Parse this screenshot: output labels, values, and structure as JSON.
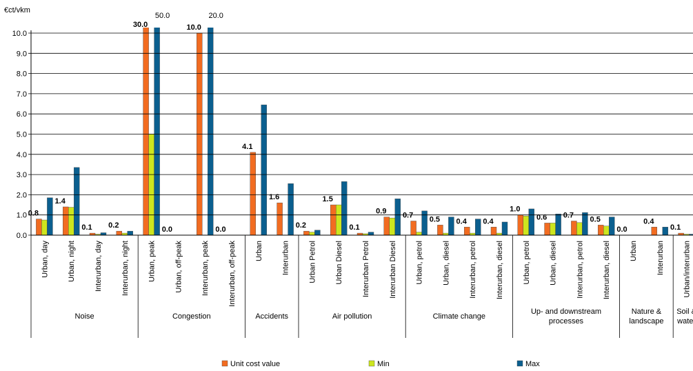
{
  "chart_data": {
    "type": "bar",
    "y_label": "€ct/vkm",
    "ylim": [
      0,
      10
    ],
    "yticks": [
      {
        "value": 0,
        "label": "0.0"
      },
      {
        "value": 1,
        "label": "1.0"
      },
      {
        "value": 2,
        "label": "2.0"
      },
      {
        "value": 3,
        "label": "3.0"
      },
      {
        "value": 4,
        "label": "4.0"
      },
      {
        "value": 5,
        "label": "5.0"
      },
      {
        "value": 6,
        "label": "6.0"
      },
      {
        "value": 7,
        "label": "7.0"
      },
      {
        "value": 8,
        "label": "8.0"
      },
      {
        "value": 9,
        "label": "9.0"
      },
      {
        "value": 10,
        "label": "10.0"
      }
    ],
    "groups": [
      {
        "name": "Noise",
        "size": 4
      },
      {
        "name": "Congestion",
        "size": 4
      },
      {
        "name": "Accidents",
        "size": 2
      },
      {
        "name": "Air pollution",
        "size": 4
      },
      {
        "name": "Climate change",
        "size": 4
      },
      {
        "name": "Up- and downstream processes",
        "size": 4
      },
      {
        "name": "Nature & landscape",
        "size": 2
      },
      {
        "name": "Soil & water",
        "size": 1
      }
    ],
    "categories": [
      "Urban, day",
      "Urban, night",
      "Interurban, day",
      "Interurban, night",
      "Urban, peak",
      "Urban, off-peak",
      "Interurban, peak",
      "Interurban, off-peak",
      "Urban",
      "Interurban",
      "Urban Petrol",
      "Urban Diesel",
      "Interurban Petrol",
      "Interurban Diesel",
      "Urban, petrol",
      "Urban, diesel",
      "Interurban, petrol",
      "Interurban, diesel",
      "Urban, petrol",
      "Urban, diesel",
      "Interurban, petrol",
      "Interurban, diesel",
      "Urban",
      "Interurban",
      "Urban/interurban"
    ],
    "series": [
      {
        "name": "Unit cost value",
        "color": "#f26c21",
        "values": [
          0.8,
          1.4,
          0.1,
          0.2,
          30,
          0,
          10,
          0,
          4.1,
          1.6,
          0.2,
          1.5,
          0.1,
          0.9,
          0.7,
          0.5,
          0.4,
          0.4,
          1.0,
          0.6,
          0.7,
          0.5,
          0,
          0.4,
          0.1
        ],
        "value_labels": [
          "0.8",
          "1.4",
          "0.1",
          "0.2",
          "30.0",
          "0.0",
          "10.0",
          "0.0",
          "4.1",
          "1.6",
          "0.2",
          "1.5",
          "0.1",
          "0.9",
          "0.7",
          "0.5",
          "0.4",
          "0.4",
          "1.0",
          "0.6",
          "0.7",
          "0.5",
          "0.0",
          "0.4",
          "0.1"
        ]
      },
      {
        "name": "Min",
        "color": "#cde61e",
        "values": [
          0.75,
          1.38,
          0.05,
          0.1,
          5.0,
          0,
          0,
          0,
          null,
          null,
          0.15,
          1.5,
          0.07,
          0.85,
          0.15,
          0.1,
          0.1,
          0.1,
          0.95,
          0.6,
          0.62,
          0.45,
          null,
          null,
          0.05
        ]
      },
      {
        "name": "Max",
        "color": "#0b5f8f",
        "values": [
          1.85,
          3.35,
          0.12,
          0.2,
          50,
          0,
          20,
          0,
          6.45,
          2.55,
          0.25,
          2.65,
          0.15,
          1.8,
          1.2,
          0.9,
          0.8,
          0.65,
          1.3,
          1.05,
          1.12,
          0.9,
          null,
          0.4,
          0.05
        ],
        "value_labels": [
          null,
          null,
          null,
          null,
          "50.0",
          null,
          "20.0",
          null,
          null,
          null,
          null,
          null,
          null,
          null,
          null,
          null,
          null,
          null,
          null,
          null,
          null,
          null,
          null,
          null,
          null
        ]
      }
    ]
  }
}
